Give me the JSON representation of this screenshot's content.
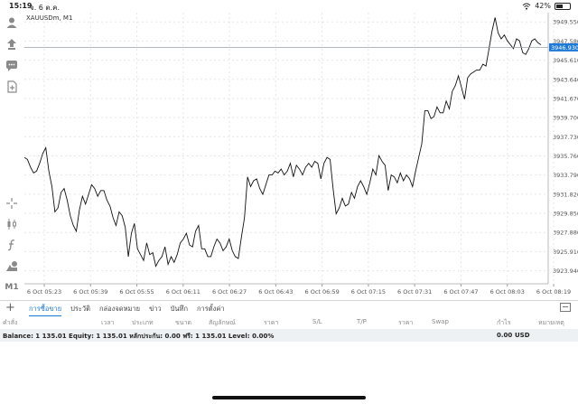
{
  "status": {
    "time": "15:19",
    "date": "จ. 6 ต.ค.",
    "battery": "42%"
  },
  "toolbar": {
    "icons": [
      "accounts-icon",
      "trade-icon",
      "chat-icon",
      "new-document-icon",
      "crosshair-icon",
      "candlestick-icon",
      "function-icon",
      "objects-icon"
    ],
    "timeframe": "M1"
  },
  "chart": {
    "symbol": "XAUUSDm, M1",
    "current_price": "3946.930",
    "price_labels": [
      "3949.550",
      "3947.580",
      "3945.610",
      "3943.640",
      "3941.670",
      "3939.700",
      "3937.730",
      "3935.760",
      "3933.790",
      "3931.820",
      "3929.850",
      "3927.880",
      "3925.910",
      "3923.940"
    ],
    "time_labels": [
      "6 Oct 05:23",
      "6 Oct 05:39",
      "6 Oct 05:55",
      "6 Oct 06:11",
      "6 Oct 06:27",
      "6 Oct 06:43",
      "6 Oct 06:59",
      "6 Oct 07:15",
      "6 Oct 07:31",
      "6 Oct 07:47",
      "6 Oct 08:03",
      "6 Oct 08:19"
    ],
    "line_color": "#111111",
    "price_tag_color": "#1e7ad6"
  },
  "chart_data": {
    "type": "line",
    "title": "XAUUSDm, M1",
    "xlabel": "",
    "ylabel": "",
    "ylim": [
      3922.6,
      3950.5
    ],
    "series": [
      {
        "values": [
          3935.6,
          3935.4,
          3934.6,
          3934.0,
          3934.2,
          3935.0,
          3936.0,
          3936.6,
          3934.2,
          3932.6,
          3930.0,
          3930.4,
          3932.0,
          3932.4,
          3931.2,
          3929.6,
          3928.6,
          3928.0,
          3930.2,
          3931.6,
          3930.8,
          3931.8,
          3932.8,
          3932.4,
          3931.6,
          3932.2,
          3932.2,
          3931.2,
          3930.6,
          3929.4,
          3928.6,
          3930.0,
          3929.6,
          3928.4,
          3925.4,
          3927.8,
          3928.8,
          3926.2,
          3925.6,
          3925.0,
          3926.8,
          3925.6,
          3925.8,
          3924.4,
          3925.0,
          3925.4,
          3926.4,
          3924.6,
          3925.4,
          3924.8,
          3925.6,
          3926.8,
          3927.2,
          3927.8,
          3926.6,
          3926.4,
          3928.0,
          3928.6,
          3926.2,
          3926.2,
          3925.4,
          3925.4,
          3926.4,
          3927.2,
          3926.8,
          3926.0,
          3926.4,
          3927.2,
          3926.0,
          3925.4,
          3925.2,
          3927.4,
          3929.4,
          3933.6,
          3932.6,
          3933.2,
          3933.4,
          3932.4,
          3931.8,
          3932.8,
          3933.8,
          3933.8,
          3934.2,
          3934.0,
          3934.4,
          3933.8,
          3934.2,
          3935.0,
          3933.6,
          3934.8,
          3934.4,
          3933.8,
          3934.6,
          3935.0,
          3934.6,
          3935.2,
          3935.0,
          3933.4,
          3935.0,
          3935.6,
          3935.4,
          3932.4,
          3929.8,
          3930.4,
          3931.4,
          3930.6,
          3930.8,
          3932.0,
          3931.4,
          3932.6,
          3933.2,
          3932.6,
          3931.8,
          3933.0,
          3934.4,
          3933.8,
          3935.8,
          3935.2,
          3934.8,
          3932.2,
          3933.8,
          3933.6,
          3933.0,
          3934.0,
          3933.2,
          3933.8,
          3933.4,
          3932.6,
          3934.2,
          3935.6,
          3937.0,
          3940.4,
          3940.4,
          3939.6,
          3939.8,
          3940.8,
          3940.2,
          3940.2,
          3941.4,
          3940.6,
          3942.4,
          3943.0,
          3944.0,
          3942.8,
          3941.6,
          3943.8,
          3944.2,
          3944.4,
          3944.6,
          3944.6,
          3945.2,
          3945.0,
          3946.8,
          3948.6,
          3950.0,
          3948.4,
          3947.8,
          3948.2,
          3947.6,
          3947.2,
          3946.8,
          3947.8,
          3947.6,
          3946.4,
          3946.2,
          3946.8,
          3947.6,
          3947.8,
          3947.4,
          3947.2
        ]
      }
    ],
    "x_ticks": [
      "6 Oct 05:23",
      "6 Oct 05:39",
      "6 Oct 05:55",
      "6 Oct 06:11",
      "6 Oct 06:27",
      "6 Oct 06:43",
      "6 Oct 06:59",
      "6 Oct 07:15",
      "6 Oct 07:31",
      "6 Oct 07:47",
      "6 Oct 08:03",
      "6 Oct 08:19"
    ],
    "y_ticks": [
      3949.55,
      3947.58,
      3945.61,
      3943.64,
      3941.67,
      3939.7,
      3937.73,
      3935.76,
      3933.79,
      3931.82,
      3929.85,
      3927.88,
      3925.91,
      3923.94
    ],
    "grid": true
  },
  "tabs": {
    "items": [
      "การซื้อขาย",
      "ประวัติ",
      "กล่องจดหมาย",
      "ข่าว",
      "บันทึก",
      "การตั้งค่า"
    ],
    "active": 0
  },
  "columns": [
    "คำสั่ง",
    "เวลา",
    "ประเภท",
    "ขนาด",
    "สัญลักษณ์",
    "ราคา",
    "S/L",
    "T/P",
    "ราคา",
    "Swap",
    "กำไร",
    "หมายเหตุ"
  ],
  "balance": {
    "text": "Balance: 1 135.01 Equity: 1 135.01 หลักประกัน: 0.00 ฟรี: 1 135.01 Level: 0.00%",
    "profit": "0.00",
    "currency": "USD"
  }
}
